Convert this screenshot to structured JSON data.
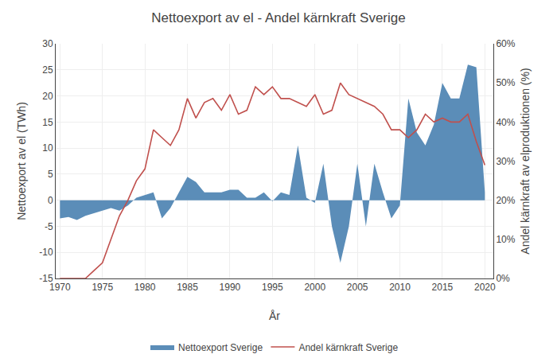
{
  "chart_data": {
    "type": "line",
    "title": "Nettoexport av el - Andel kärnkraft Sverige",
    "xlabel": "År",
    "ylabel": "Nettoexport av el (TWh)",
    "y2label": "Andel kärnkraft av elproduktionen (%)",
    "x": [
      1970,
      1971,
      1972,
      1973,
      1974,
      1975,
      1976,
      1977,
      1978,
      1979,
      1980,
      1981,
      1982,
      1983,
      1984,
      1985,
      1986,
      1987,
      1988,
      1989,
      1990,
      1991,
      1992,
      1993,
      1994,
      1995,
      1996,
      1997,
      1998,
      1999,
      2000,
      2001,
      2002,
      2003,
      2004,
      2005,
      2006,
      2007,
      2008,
      2009,
      2010,
      2011,
      2012,
      2013,
      2014,
      2015,
      2016,
      2017,
      2018,
      2019,
      2020
    ],
    "series": [
      {
        "name": "Nettoexport Sverige",
        "type": "area",
        "color": "#5B8DB8",
        "values": [
          -3.5,
          -3.2,
          -3.8,
          -3.0,
          -2.5,
          -2.0,
          -1.5,
          -2.0,
          -1.0,
          0.5,
          1.0,
          1.5,
          -3.5,
          -1.5,
          1.5,
          4.5,
          3.5,
          1.5,
          1.5,
          1.5,
          2.0,
          2.0,
          0.5,
          0.5,
          1.5,
          -0.2,
          1.5,
          1.0,
          10.5,
          0.5,
          -0.5,
          7.0,
          -5.0,
          -12.0,
          -5.0,
          7.0,
          -5.0,
          7.0,
          1.5,
          -3.5,
          -1.0,
          19.5,
          13.0,
          10.5,
          14.5,
          22.5,
          19.5,
          19.5,
          26.0,
          25.5,
          1.5
        ]
      },
      {
        "name": "Andel kärnkraft Sverige",
        "type": "line",
        "axis": "y2",
        "color": "#C0504D",
        "values": [
          0.0,
          0.0,
          0.0,
          0.0,
          2.0,
          4.0,
          10.0,
          16.0,
          20.0,
          25.0,
          28.0,
          38.0,
          36.0,
          34.0,
          38.0,
          46.0,
          41.0,
          45.0,
          46.0,
          43.0,
          47.0,
          42.0,
          43.0,
          49.0,
          47.0,
          49.0,
          46.0,
          46.0,
          45.0,
          44.0,
          47.0,
          42.0,
          43.0,
          50.0,
          47.0,
          46.0,
          45.0,
          44.0,
          42.0,
          38.0,
          38.0,
          36.0,
          38.0,
          42.0,
          40.0,
          41.0,
          40.0,
          40.0,
          42.0,
          35.0,
          29.0
        ]
      }
    ],
    "xlim": [
      1969.5,
      2021
    ],
    "xticks": [
      1970,
      1975,
      1980,
      1985,
      1990,
      1995,
      2000,
      2005,
      2010,
      2015,
      2020
    ],
    "ylim": [
      -15,
      30
    ],
    "yticks": [
      -15,
      -10,
      -5,
      0,
      5,
      10,
      15,
      20,
      25,
      30
    ],
    "y2lim": [
      0,
      60
    ],
    "y2ticks": [
      {
        "value": 0,
        "label": "0%"
      },
      {
        "value": 10,
        "label": "10%"
      },
      {
        "value": 20,
        "label": "20%"
      },
      {
        "value": 30,
        "label": "30%"
      },
      {
        "value": 40,
        "label": "40%"
      },
      {
        "value": 50,
        "label": "50%"
      },
      {
        "value": 60,
        "label": "60%"
      }
    ],
    "grid": true,
    "legend": "bottom"
  }
}
